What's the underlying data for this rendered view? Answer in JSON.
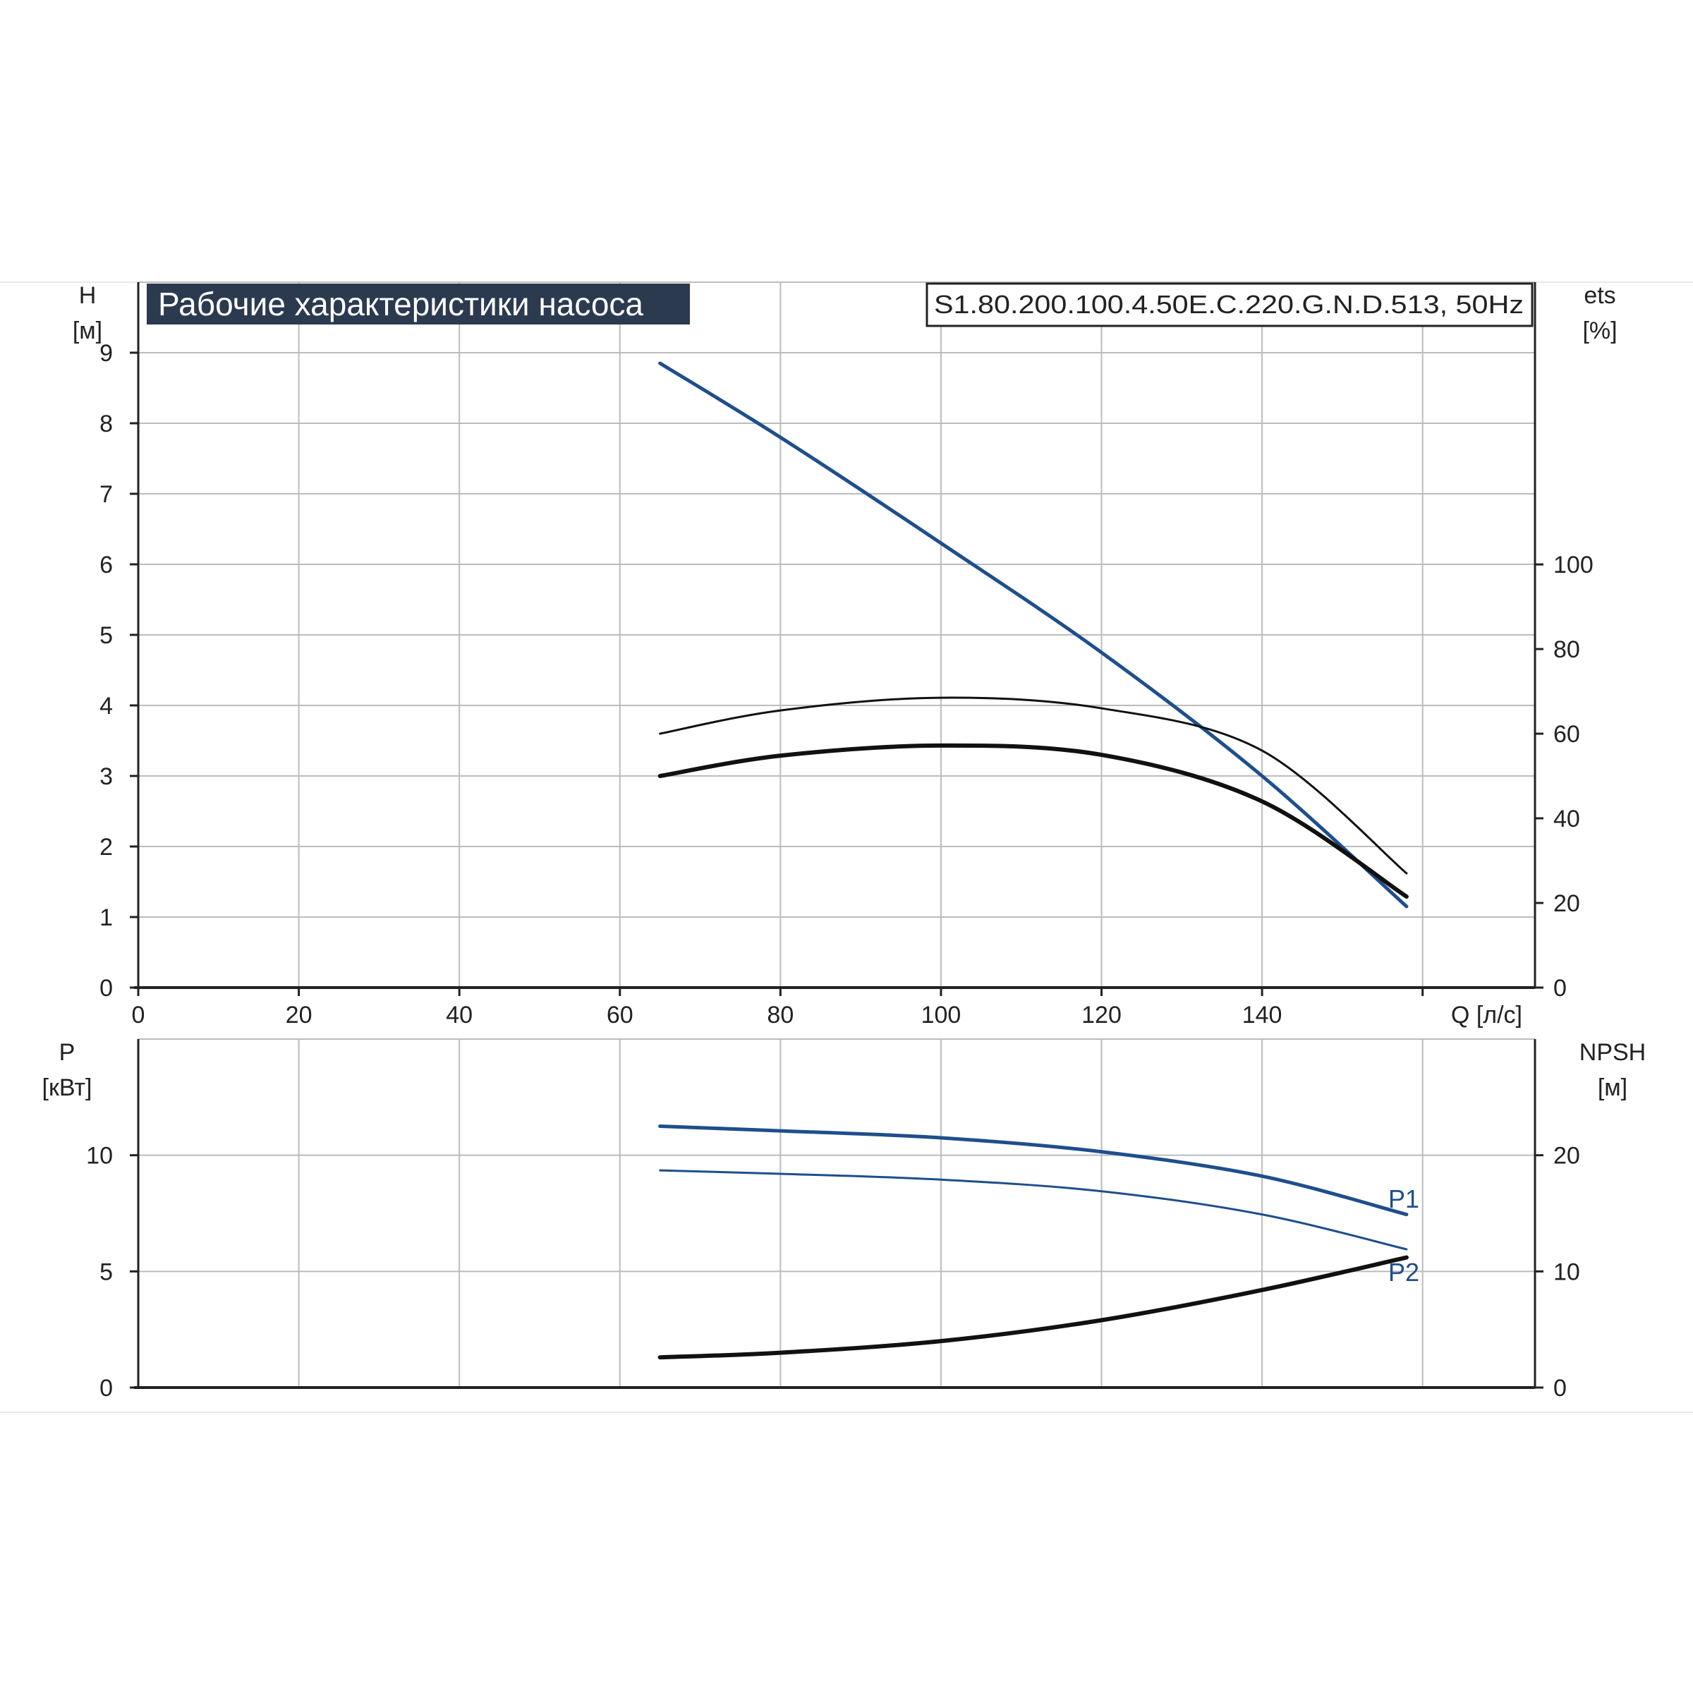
{
  "colors": {
    "blue": "#1f4e8c",
    "black": "#111111",
    "grid": "#bcbcbc",
    "title_bg": "#2b3a4f"
  },
  "chart_data": [
    {
      "type": "line",
      "title": "Рабочие характеристики насоса",
      "model": "S1.80.200.100.4.50E.C.220.G.N.D.513, 50Hz",
      "y_left_label": [
        "H",
        "[м]"
      ],
      "y_right_label": [
        "ets",
        "[%]"
      ],
      "x_label": "Q [л/с]",
      "x_ticks": [
        "0",
        "20",
        "40",
        "60",
        "80",
        "100",
        "120",
        "140"
      ],
      "y_left_ticks": [
        "0",
        "1",
        "2",
        "3",
        "4",
        "5",
        "6",
        "7",
        "8",
        "9"
      ],
      "y_right_ticks": [
        "0",
        "20",
        "40",
        "60",
        "80",
        "100"
      ],
      "xlim": [
        0,
        174
      ],
      "ylim_left": [
        0,
        10
      ],
      "ylim_right": [
        0,
        166.7
      ],
      "grid": true,
      "series": [
        {
          "axis": "left",
          "color": "blue",
          "x": [
            65,
            80,
            100,
            120,
            140,
            158
          ],
          "y": [
            8.85,
            7.8,
            6.3,
            4.75,
            3.0,
            1.15
          ]
        },
        {
          "axis": "right",
          "color": "black",
          "x": [
            65,
            80,
            100,
            120,
            140,
            158
          ],
          "y": [
            60,
            65.5,
            68.5,
            66,
            56,
            27
          ]
        },
        {
          "axis": "right",
          "color": "black",
          "x": [
            65,
            80,
            100,
            120,
            140,
            158
          ],
          "y": [
            50,
            54.8,
            57.2,
            55,
            44,
            21.5
          ]
        }
      ]
    },
    {
      "type": "line",
      "y_left_label": [
        "P",
        "[кВт]"
      ],
      "y_right_label": [
        "NPSH",
        "[м]"
      ],
      "y_left_ticks": [
        "0",
        "5",
        "10"
      ],
      "y_right_ticks": [
        "0",
        "10",
        "20"
      ],
      "xlim": [
        0,
        174
      ],
      "ylim_left": [
        0,
        15
      ],
      "ylim_right": [
        0,
        30
      ],
      "grid": true,
      "series": [
        {
          "name": "P1",
          "axis": "left",
          "color": "blue",
          "x": [
            65,
            80,
            100,
            120,
            140,
            158
          ],
          "y": [
            11.25,
            11.05,
            10.75,
            10.15,
            9.1,
            7.45
          ]
        },
        {
          "name": "P2",
          "axis": "left",
          "color": "blue",
          "x": [
            65,
            80,
            100,
            120,
            140,
            158
          ],
          "y": [
            9.35,
            9.2,
            8.95,
            8.45,
            7.45,
            5.95
          ]
        },
        {
          "axis": "right",
          "color": "black",
          "x": [
            65,
            80,
            100,
            120,
            140,
            158
          ],
          "y": [
            2.6,
            3.0,
            4.0,
            5.8,
            8.4,
            11.2
          ]
        }
      ]
    }
  ]
}
